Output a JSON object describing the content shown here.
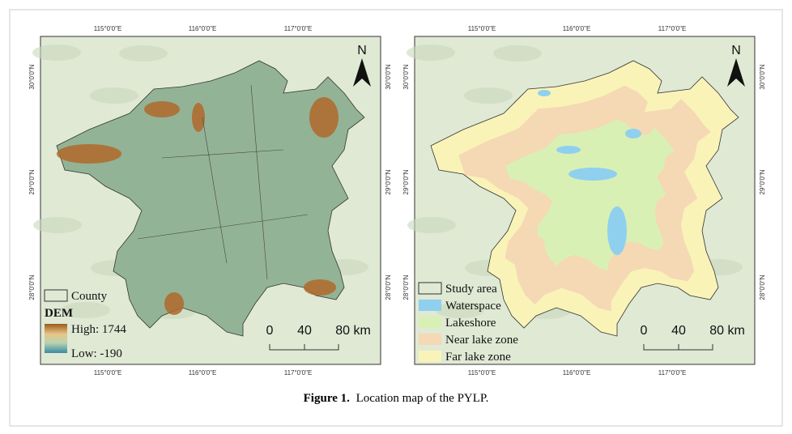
{
  "figure": {
    "caption_label": "Figure 1.",
    "caption_text": "Location map of the PYLP."
  },
  "maps": [
    {
      "lon_labels": [
        "115°0'0\"E",
        "116°0'0\"E",
        "117°0'0\"E"
      ],
      "lat_labels": [
        "30°0'0\"N",
        "29°0'0\"N",
        "28°0'0\"N"
      ],
      "north": "N",
      "legend": {
        "boundary": "County",
        "title": "DEM",
        "high": "High: 1744",
        "low": "Low: -190"
      },
      "scale": [
        "0",
        "40",
        "80 km"
      ]
    },
    {
      "lon_labels": [
        "115°0'0\"E",
        "116°0'0\"E",
        "117°0'0\"E"
      ],
      "lat_labels": [
        "30°0'0\"N",
        "29°0'0\"N",
        "28°0'0\"N"
      ],
      "north": "N",
      "legend": {
        "items": [
          "Study area",
          "Waterspace",
          "Lakeshore",
          "Near lake zone",
          "Far lake zone"
        ]
      },
      "scale": [
        "0",
        "40",
        "80 km"
      ]
    }
  ]
}
